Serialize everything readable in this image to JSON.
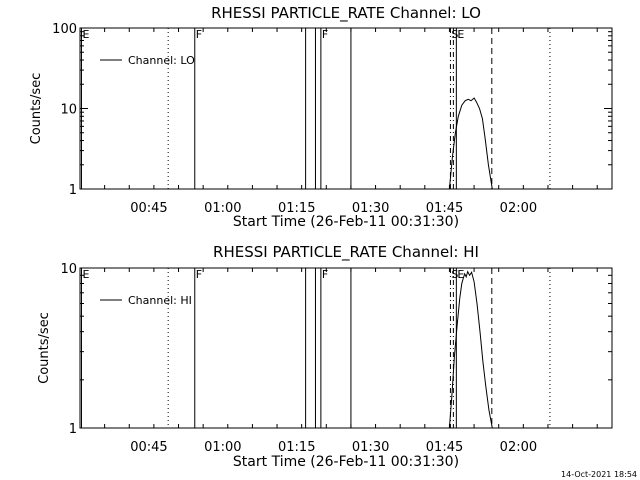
{
  "footer_timestamp": "14-Oct-2021 18:54",
  "chart_data": [
    {
      "type": "line",
      "title": "RHESSI PARTICLE_RATE Channel: LO",
      "xlabel": "Start Time (26-Feb-11 00:31:30)",
      "ylabel": "Counts/sec",
      "yscale": "log",
      "ylim": [
        1,
        100
      ],
      "xlim_min": [
        0,
        108
      ],
      "x_ticks": [
        {
          "min": 14,
          "label": "00:45"
        },
        {
          "min": 29,
          "label": "01:00"
        },
        {
          "min": 44,
          "label": "01:15"
        },
        {
          "min": 59,
          "label": "01:30"
        },
        {
          "min": 74,
          "label": "01:45"
        },
        {
          "min": 89,
          "label": "02:00"
        }
      ],
      "y_ticks": [
        {
          "value": 1,
          "label": "1"
        },
        {
          "value": 10,
          "label": "10"
        },
        {
          "value": 100,
          "label": "100"
        }
      ],
      "legend": {
        "label": "Channel: LO",
        "placement": "top-left"
      },
      "series": [
        {
          "name": "Channel: LO",
          "x": [
            75.0,
            75.6,
            76.2,
            76.8,
            77.5,
            78.2,
            78.8,
            79.4,
            80.0,
            80.5,
            81.1,
            81.7,
            82.3,
            82.9,
            83.7
          ],
          "y": [
            1,
            2.5,
            5,
            8,
            11,
            12.5,
            13,
            12.5,
            13.5,
            12,
            10,
            7.5,
            4,
            2,
            1
          ]
        }
      ],
      "events": [
        {
          "x": 0.3,
          "style": "solid",
          "label": "E"
        },
        {
          "x": 17.9,
          "style": "dotted",
          "label": ""
        },
        {
          "x": 23.3,
          "style": "solid",
          "label": "F"
        },
        {
          "x": 45.8,
          "style": "solid",
          "label": ""
        },
        {
          "x": 47.8,
          "style": "solid",
          "label": ""
        },
        {
          "x": 48.9,
          "style": "solid",
          "label": "F"
        },
        {
          "x": 55.0,
          "style": "solid",
          "label": ""
        },
        {
          "x": 75.2,
          "style": "dashdot",
          "label": "S"
        },
        {
          "x": 75.8,
          "style": "dashdot",
          "label": ""
        },
        {
          "x": 76.4,
          "style": "solid",
          "label": "E"
        },
        {
          "x": 83.6,
          "style": "dashed",
          "label": ""
        },
        {
          "x": 95.4,
          "style": "dotted",
          "label": ""
        }
      ]
    },
    {
      "type": "line",
      "title": "RHESSI PARTICLE_RATE Channel: HI",
      "xlabel": "Start Time (26-Feb-11 00:31:30)",
      "ylabel": "Counts/sec",
      "yscale": "log",
      "ylim": [
        1,
        10
      ],
      "xlim_min": [
        0,
        108
      ],
      "x_ticks": [
        {
          "min": 14,
          "label": "00:45"
        },
        {
          "min": 29,
          "label": "01:00"
        },
        {
          "min": 44,
          "label": "01:15"
        },
        {
          "min": 59,
          "label": "01:30"
        },
        {
          "min": 74,
          "label": "01:45"
        },
        {
          "min": 89,
          "label": "02:00"
        }
      ],
      "y_ticks": [
        {
          "value": 1,
          "label": "1"
        },
        {
          "value": 10,
          "label": "10"
        }
      ],
      "legend": {
        "label": "Channel: HI",
        "placement": "top-left"
      },
      "series": [
        {
          "name": "Channel: HI",
          "x": [
            75.0,
            75.5,
            76.0,
            76.6,
            77.1,
            77.5,
            77.8,
            78.1,
            78.4,
            78.7,
            79.1,
            79.5,
            80.0,
            80.6,
            81.2,
            81.8,
            82.4,
            83.0,
            83.7
          ],
          "y": [
            1,
            1.6,
            2.8,
            4.5,
            6.5,
            8.0,
            8.6,
            9.2,
            8.8,
            9.5,
            9.0,
            9.4,
            8.2,
            6.0,
            4.0,
            2.6,
            1.8,
            1.3,
            1
          ]
        }
      ],
      "events": [
        {
          "x": 0.3,
          "style": "solid",
          "label": "E"
        },
        {
          "x": 17.9,
          "style": "dotted",
          "label": ""
        },
        {
          "x": 23.3,
          "style": "solid",
          "label": "F"
        },
        {
          "x": 45.8,
          "style": "solid",
          "label": ""
        },
        {
          "x": 47.8,
          "style": "solid",
          "label": ""
        },
        {
          "x": 48.9,
          "style": "solid",
          "label": "F"
        },
        {
          "x": 55.0,
          "style": "solid",
          "label": ""
        },
        {
          "x": 75.2,
          "style": "dashdot",
          "label": "S"
        },
        {
          "x": 75.8,
          "style": "dashdot",
          "label": ""
        },
        {
          "x": 76.4,
          "style": "solid",
          "label": "E"
        },
        {
          "x": 83.6,
          "style": "dashed",
          "label": ""
        },
        {
          "x": 95.4,
          "style": "dotted",
          "label": ""
        }
      ]
    }
  ]
}
